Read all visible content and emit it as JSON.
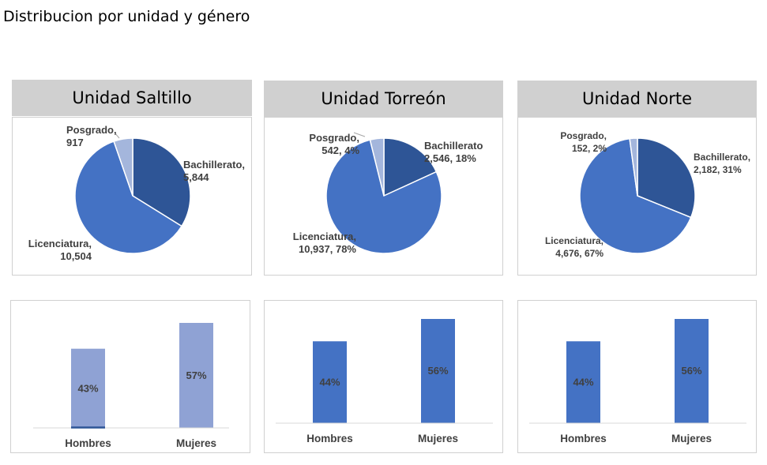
{
  "page_title": "Distribucion por unidad y género",
  "colors": {
    "bachillerato": "#2e5596",
    "licenciatura": "#4472c4",
    "posgrado": "#a4b6dc",
    "bar_light": "#8fa2d4",
    "bar_dark": "#4472c4",
    "bar_base_stroke": "#2e5596",
    "header_bg": "#d0d0d0"
  },
  "units": [
    {
      "title": "Unidad Saltillo"
    },
    {
      "title": "Unidad Torreón"
    },
    {
      "title": "Unidad Norte"
    }
  ],
  "chart_data": [
    {
      "type": "pie",
      "title": "Unidad Saltillo",
      "categories": [
        "Bachillerato",
        "Licenciatura",
        "Posgrado"
      ],
      "values": [
        5844,
        10504,
        917
      ],
      "labels": [
        {
          "line1": "Bachillerato,",
          "line2": "5,844"
        },
        {
          "line1": "Licenciatura,",
          "line2": "10,504"
        },
        {
          "line1": "Posgrado,",
          "line2": "917"
        }
      ]
    },
    {
      "type": "pie",
      "title": "Unidad Torreón",
      "categories": [
        "Bachillerato",
        "Licenciatura",
        "Posgrado"
      ],
      "values": [
        2546,
        10937,
        542
      ],
      "labels": [
        {
          "line1": "Bachillerato",
          "line2": "2,546, 18%"
        },
        {
          "line1": "Licenciatura,",
          "line2": "10,937, 78%"
        },
        {
          "line1": "Posgrado,",
          "line2": "542, 4%"
        }
      ]
    },
    {
      "type": "pie",
      "title": "Unidad Norte",
      "categories": [
        "Bachillerato",
        "Licenciatura",
        "Posgrado"
      ],
      "values": [
        2182,
        4676,
        152
      ],
      "labels": [
        {
          "line1": "Bachillerato,",
          "line2": "2,182, 31%"
        },
        {
          "line1": "Licenciatura,",
          "line2": "4,676, 67%"
        },
        {
          "line1": "Posgrado,",
          "line2": "152, 2%"
        }
      ]
    },
    {
      "type": "bar",
      "categories": [
        "Hombres",
        "Mujeres"
      ],
      "values": [
        43,
        57
      ],
      "data_labels": [
        "43%",
        "57%"
      ],
      "ylim": [
        0,
        57
      ]
    },
    {
      "type": "bar",
      "categories": [
        "Hombres",
        "Mujeres"
      ],
      "values": [
        44,
        56
      ],
      "data_labels": [
        "44%",
        "56%"
      ],
      "ylim": [
        0,
        56
      ]
    },
    {
      "type": "bar",
      "categories": [
        "Hombres",
        "Mujeres"
      ],
      "values": [
        44,
        56
      ],
      "data_labels": [
        "44%",
        "56%"
      ],
      "ylim": [
        0,
        56
      ]
    }
  ]
}
